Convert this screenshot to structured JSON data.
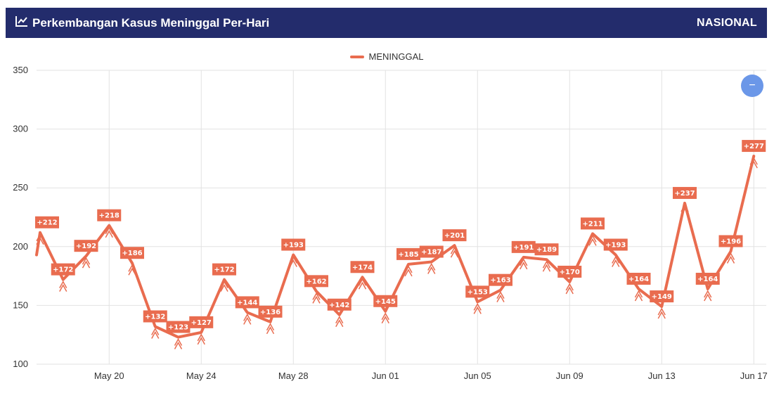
{
  "header": {
    "title": "Perkembangan Kasus Meninggal Per-Hari",
    "region": "NASIONAL",
    "icon": "line-chart-icon"
  },
  "zoom_button": {
    "icon": "minus-icon",
    "label": "−"
  },
  "colors": {
    "header_bg": "#232c6c",
    "series": "#e96c4f",
    "zoom_button": "#6b97e8"
  },
  "chart_data": {
    "type": "line",
    "legend": "MENINGGAL",
    "legend_position": "top-center",
    "grid": true,
    "ylim": [
      100,
      350
    ],
    "yticks": [
      100,
      150,
      200,
      250,
      300,
      350
    ],
    "x_ticks": [
      "May 20",
      "May 24",
      "May 28",
      "Jun 01",
      "Jun 05",
      "Jun 09",
      "Jun 13",
      "Jun 17"
    ],
    "series": [
      {
        "name": "MENINGGAL",
        "x": [
          "2021-05-17",
          "2021-05-18",
          "2021-05-19",
          "2021-05-20",
          "2021-05-21",
          "2021-05-22",
          "2021-05-23",
          "2021-05-24",
          "2021-05-25",
          "2021-05-26",
          "2021-05-27",
          "2021-05-28",
          "2021-05-29",
          "2021-05-30",
          "2021-05-31",
          "2021-06-01",
          "2021-06-02",
          "2021-06-03",
          "2021-06-04",
          "2021-06-05",
          "2021-06-06",
          "2021-06-07",
          "2021-06-08",
          "2021-06-09",
          "2021-06-10",
          "2021-06-11",
          "2021-06-12",
          "2021-06-13",
          "2021-06-14",
          "2021-06-15",
          "2021-06-16",
          "2021-06-17"
        ],
        "values": [
          212,
          172,
          192,
          218,
          186,
          132,
          123,
          127,
          172,
          144,
          136,
          193,
          162,
          142,
          174,
          145,
          185,
          187,
          201,
          153,
          163,
          191,
          189,
          170,
          211,
          193,
          164,
          149,
          237,
          164,
          196,
          277
        ],
        "data_labels": [
          "+212",
          "+172",
          "+192",
          "+218",
          "+186",
          "+132",
          "+123",
          "+127",
          "+172",
          "+144",
          "+136",
          "+193",
          "+162",
          "+142",
          "+174",
          "+145",
          "+185",
          "+187",
          "+201",
          "+153",
          "+163",
          "+191",
          "+189",
          "+170",
          "+211",
          "+193",
          "+164",
          "+149",
          "+237",
          "+164",
          "+196",
          "+277"
        ]
      }
    ]
  }
}
